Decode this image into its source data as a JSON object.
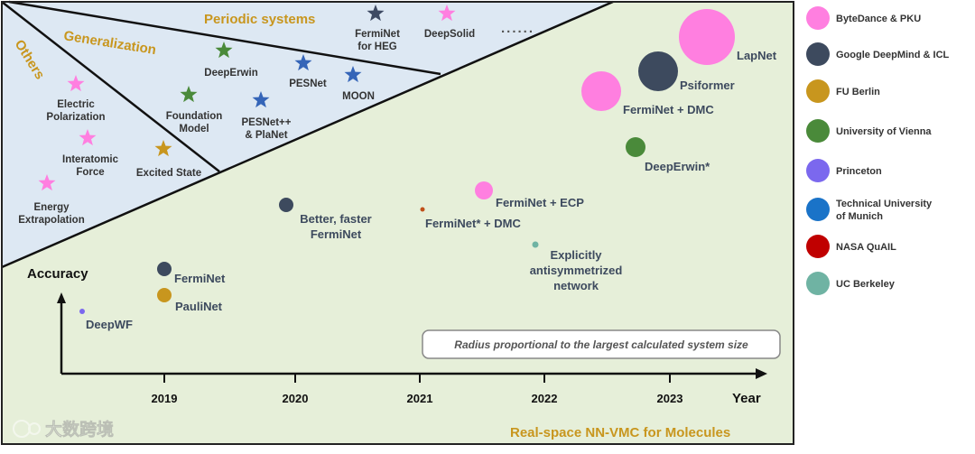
{
  "regions": {
    "periodic": "Periodic systems",
    "generalization": "Generalization",
    "others": "Others",
    "footer": "Real-space NN-VMC for Molecules"
  },
  "axes": {
    "y_label": "Accuracy",
    "x_label": "Year",
    "years": [
      "2019",
      "2020",
      "2021",
      "2022",
      "2023"
    ]
  },
  "note": "Radius proportional to the largest calculated system size",
  "ellipsis": "......",
  "stars": [
    {
      "id": "fermienet-heg",
      "lines": [
        "FermiNet",
        "for HEG"
      ],
      "color": "#3d4a63"
    },
    {
      "id": "deepsolid",
      "lines": [
        "DeepSolid"
      ],
      "color": "#ff7fe0"
    },
    {
      "id": "deeperwin",
      "lines": [
        "DeepErwin"
      ],
      "color": "#4a8a3a"
    },
    {
      "id": "pesnet",
      "lines": [
        "PESNet"
      ],
      "color": "#3565b8"
    },
    {
      "id": "moon",
      "lines": [
        "MOON"
      ],
      "color": "#3565b8"
    },
    {
      "id": "foundation",
      "lines": [
        "Foundation",
        "Model"
      ],
      "color": "#4a8a3a"
    },
    {
      "id": "pesnet-planet",
      "lines": [
        "PESNet++",
        "& PlaNet"
      ],
      "color": "#3565b8"
    },
    {
      "id": "excited",
      "lines": [
        "Excited State"
      ],
      "color": "#c8961e"
    },
    {
      "id": "polarization",
      "lines": [
        "Electric",
        "Polarization"
      ],
      "color": "#ff7fe0"
    },
    {
      "id": "force",
      "lines": [
        "Interatomic",
        "Force"
      ],
      "color": "#ff7fe0"
    },
    {
      "id": "energy",
      "lines": [
        "Energy",
        "Extrapolation"
      ],
      "color": "#ff7fe0"
    }
  ],
  "bubbles": [
    {
      "id": "deepwf",
      "lines": [
        "DeepWF"
      ],
      "color": "#7b68ee"
    },
    {
      "id": "ferminet",
      "lines": [
        "FermiNet"
      ],
      "color": "#3d4a5e"
    },
    {
      "id": "paulinet",
      "lines": [
        "PauliNet"
      ],
      "color": "#c8961e"
    },
    {
      "id": "better",
      "lines": [
        "Better, faster",
        "FermiNet"
      ],
      "color": "#3d4a5e"
    },
    {
      "id": "ferminet-dmc-star",
      "lines": [
        "FermiNet* + DMC"
      ],
      "color": "#c0501a"
    },
    {
      "id": "ferminet-ecp",
      "lines": [
        "FermiNet + ECP"
      ],
      "color": "#ff7fe0"
    },
    {
      "id": "explicit",
      "lines": [
        "Explicitly",
        "antisymmetrized",
        "network"
      ],
      "color": "#6fb3a3"
    },
    {
      "id": "ferminet-dmc",
      "lines": [
        "FermiNet + DMC"
      ],
      "color": "#ff7fe0"
    },
    {
      "id": "psiformer",
      "lines": [
        "Psiformer"
      ],
      "color": "#3d4a5e"
    },
    {
      "id": "deeperwin-star",
      "lines": [
        "DeepErwin*"
      ],
      "color": "#4a8a3a"
    },
    {
      "id": "lapnet",
      "lines": [
        "LapNet"
      ],
      "color": "#ff7fe0"
    }
  ],
  "legend": [
    {
      "lines": [
        "ByteDance & PKU"
      ],
      "color": "#ff7fe0"
    },
    {
      "lines": [
        "Google DeepMind & ICL"
      ],
      "color": "#3d4a5e"
    },
    {
      "lines": [
        "FU Berlin"
      ],
      "color": "#c8961e"
    },
    {
      "lines": [
        "University of Vienna"
      ],
      "color": "#4a8a3a"
    },
    {
      "lines": [
        "Princeton"
      ],
      "color": "#7b68ee"
    },
    {
      "lines": [
        "Technical University",
        "of Munich"
      ],
      "color": "#1a73c8"
    },
    {
      "lines": [
        "NASA QuAIL"
      ],
      "color": "#c00000"
    },
    {
      "lines": [
        "UC Berkeley"
      ],
      "color": "#6fb3a3"
    }
  ],
  "watermark": "大数跨境"
}
